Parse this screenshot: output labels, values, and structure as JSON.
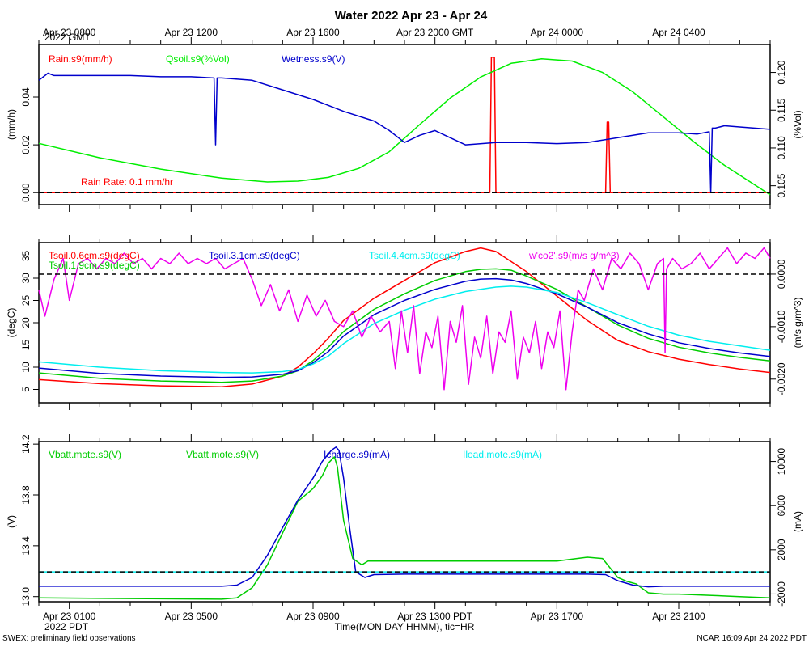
{
  "title": "Water 2022 Apr 23 - Apr 24",
  "top_time_labels": [
    "Apr 23 0800",
    "Apr 23 1200",
    "Apr 23 1600",
    "Apr 23 2000 GMT",
    "Apr 24 0000",
    "Apr 24 0400"
  ],
  "top_zone_label": "2022 GMT",
  "bottom_time_labels": [
    "Apr 23 0100",
    "Apr 23 0500",
    "Apr 23 0900",
    "Apr 23 1300 PDT",
    "Apr 23 1700",
    "Apr 23 2100"
  ],
  "bottom_zone_label": "2022 PDT",
  "xaxis_title": "Time(MON DAY HHMM), tic=HR",
  "footer_left": "SWEX: preliminary field observations",
  "footer_right": "NCAR 16:09 Apr 24 2022 PDT",
  "chart_data": [
    {
      "type": "line",
      "x_unit": "hours since Apr 23 0000 PDT",
      "xlim": [
        0,
        24
      ],
      "left_axis": {
        "label": "(mm/h)",
        "ylim": [
          -0.005,
          0.062
        ],
        "ticks": [
          "0.00",
          "0.02",
          "0.04"
        ],
        "tick_values": [
          0,
          0.02,
          0.04
        ]
      },
      "right_axis": {
        "label": "(%Vol)",
        "ylim": [
          0.1025,
          0.1237
        ],
        "ticks": [
          "0.105",
          "0.110",
          "0.115",
          "0.120"
        ],
        "tick_values": [
          0.105,
          0.11,
          0.115,
          0.12
        ]
      },
      "legend": [
        "Rain.s9(mm/h)",
        "Qsoil.s9(%Vol)",
        "Wetness.s9(V)"
      ],
      "annotation": "Rain Rate: 0.1 mm/hr",
      "reference_line": {
        "axis": "left",
        "value": 0
      },
      "series": [
        {
          "name": "Rain.s9(mm/h)",
          "axis": "left",
          "color": "#ff0000",
          "x": [
            0,
            14.8,
            14.85,
            14.95,
            15.0,
            18.6,
            18.65,
            18.7,
            18.75,
            24
          ],
          "y": [
            0,
            0,
            0.0567,
            0.0567,
            0,
            0,
            0.0295,
            0.0295,
            0,
            0
          ]
        },
        {
          "name": "Qsoil.s9(%Vol)",
          "axis": "right",
          "color": "#00ee00",
          "x": [
            0,
            2,
            4,
            6,
            7.5,
            8.5,
            9.5,
            10.5,
            11.5,
            12.5,
            13.5,
            14.5,
            15.5,
            16.5,
            17.5,
            18.5,
            19.5,
            20.5,
            21.5,
            22.5,
            24
          ],
          "y": [
            0.1106,
            0.1087,
            0.1072,
            0.106,
            0.1055,
            0.1056,
            0.1061,
            0.1073,
            0.1095,
            0.1131,
            0.1166,
            0.1194,
            0.1212,
            0.1218,
            0.1215,
            0.12,
            0.1174,
            0.1141,
            0.1108,
            0.1077,
            0.1038
          ]
        },
        {
          "name": "Wetness.s9(V)",
          "axis": "left",
          "color": "#0000cc",
          "x": [
            0,
            0.3,
            0.5,
            1.5,
            3,
            4,
            5,
            5.75,
            5.8,
            5.85,
            6,
            7,
            8,
            9,
            10,
            11,
            11.5,
            12,
            12.5,
            13,
            13.5,
            14,
            15,
            16,
            17,
            18,
            19,
            20,
            21,
            21.6,
            22.0,
            22.05,
            22.1,
            22.2,
            22.5,
            23,
            24
          ],
          "y": [
            0.047,
            0.05,
            0.049,
            0.049,
            0.049,
            0.0485,
            0.0485,
            0.048,
            0.02,
            0.048,
            0.048,
            0.047,
            0.043,
            0.039,
            0.034,
            0.03,
            0.026,
            0.021,
            0.024,
            0.026,
            0.023,
            0.02,
            0.021,
            0.021,
            0.0205,
            0.021,
            0.023,
            0.025,
            0.025,
            0.0245,
            0.0255,
            0.0,
            0.027,
            0.027,
            0.028,
            0.0275,
            0.0265
          ]
        }
      ]
    },
    {
      "type": "line",
      "x_unit": "hours since Apr 23 0000 PDT",
      "xlim": [
        0,
        24
      ],
      "left_axis": {
        "label": "(degC)",
        "ylim": [
          2,
          38
        ],
        "ticks": [
          "5",
          "10",
          "15",
          "20",
          "25",
          "30",
          "35"
        ],
        "tick_values": [
          5,
          10,
          15,
          20,
          25,
          30,
          35
        ]
      },
      "right_axis": {
        "label": "(m/s g/m^3)",
        "ylim": [
          -0.00245,
          0.0006
        ],
        "ticks": [
          "-0.0020",
          "-0.0010",
          "0.0000"
        ],
        "tick_values": [
          -0.002,
          -0.001,
          0
        ]
      },
      "legend": [
        "Tsoil.0.6cm.s9(degC)",
        "Tsoil.1.9cm.s9(degC)",
        "Tsoil.3.1cm.s9(degC)",
        "Tsoil.4.4cm.s9(degC)",
        "w'co2'.s9(m/s g/m^3)"
      ],
      "reference_line": {
        "axis": "right",
        "value": 0
      },
      "series": [
        {
          "name": "Tsoil.0.6cm.s9(degC)",
          "axis": "left",
          "color": "#ff0000",
          "x": [
            0,
            2,
            4,
            6,
            7,
            8,
            8.5,
            9,
            9.5,
            10,
            11,
            12,
            13,
            14,
            14.5,
            15,
            16,
            17,
            18,
            19,
            20,
            21,
            22,
            23,
            24
          ],
          "y": [
            7.2,
            6.3,
            5.8,
            5.6,
            6.2,
            8.0,
            10.0,
            13.0,
            16.5,
            20.5,
            25.5,
            29.5,
            33.5,
            36.0,
            36.8,
            36.0,
            31.5,
            26.0,
            20.5,
            16.0,
            13.5,
            11.8,
            10.6,
            9.6,
            8.8
          ]
        },
        {
          "name": "Tsoil.1.9cm.s9(degC)",
          "axis": "left",
          "color": "#00cc00",
          "x": [
            0,
            2,
            4,
            6,
            7,
            8,
            8.5,
            9,
            9.5,
            10,
            11,
            12,
            13,
            14,
            14.5,
            15,
            15.5,
            16,
            17,
            18,
            19,
            20,
            21,
            22,
            23,
            24
          ],
          "y": [
            8.7,
            7.5,
            6.9,
            6.6,
            6.9,
            8.0,
            9.2,
            11.5,
            14.5,
            18.0,
            23.0,
            26.5,
            29.5,
            31.5,
            32.0,
            32.1,
            31.8,
            30.5,
            27.5,
            23.5,
            19.5,
            16.5,
            14.5,
            13.2,
            12.2,
            11.4
          ]
        },
        {
          "name": "Tsoil.3.1cm.s9(degC)",
          "axis": "left",
          "color": "#0000cc",
          "x": [
            0,
            2,
            4,
            6,
            7,
            8,
            8.5,
            9,
            9.5,
            10,
            11,
            12,
            13,
            14,
            14.5,
            15,
            15.5,
            16,
            17,
            18,
            19,
            20,
            21,
            22,
            23,
            24
          ],
          "y": [
            9.8,
            8.6,
            8.0,
            7.7,
            7.8,
            8.4,
            9.2,
            11.0,
            13.5,
            17.0,
            21.8,
            25.0,
            27.5,
            29.3,
            29.8,
            29.9,
            29.6,
            28.8,
            26.5,
            23.5,
            20.0,
            17.5,
            15.5,
            14.2,
            13.2,
            12.4
          ]
        },
        {
          "name": "Tsoil.4.4cm.s9(degC)",
          "axis": "left",
          "color": "#00eeee",
          "x": [
            0,
            2,
            4,
            6,
            7,
            8,
            8.5,
            9,
            9.5,
            10,
            11,
            12,
            13,
            14,
            15,
            15.5,
            16,
            17,
            18,
            19,
            20,
            21,
            22,
            23,
            24
          ],
          "y": [
            11.2,
            10.0,
            9.2,
            8.8,
            8.7,
            9.0,
            9.5,
            10.7,
            12.5,
            15.3,
            19.8,
            22.8,
            25.3,
            27.0,
            28.0,
            28.2,
            28.0,
            26.8,
            24.5,
            21.8,
            19.2,
            17.2,
            15.8,
            14.8,
            13.8
          ]
        },
        {
          "name": "w'co2'.s9(m/s g/m^3)",
          "axis": "right",
          "color": "#ee00ee",
          "x": [
            0,
            0.2,
            0.5,
            0.8,
            1.0,
            1.3,
            1.6,
            1.9,
            2.2,
            2.5,
            2.8,
            3.1,
            3.4,
            3.7,
            4.0,
            4.3,
            4.6,
            4.9,
            5.2,
            5.5,
            5.8,
            6.1,
            6.4,
            6.7,
            7.0,
            7.3,
            7.6,
            7.9,
            8.2,
            8.5,
            8.8,
            9.1,
            9.4,
            9.7,
            10.0,
            10.3,
            10.6,
            10.9,
            11.2,
            11.5,
            11.7,
            11.9,
            12.1,
            12.3,
            12.5,
            12.7,
            12.9,
            13.1,
            13.3,
            13.5,
            13.7,
            13.9,
            14.1,
            14.3,
            14.5,
            14.7,
            14.9,
            15.1,
            15.3,
            15.5,
            15.7,
            15.9,
            16.1,
            16.3,
            16.5,
            16.7,
            16.9,
            17.1,
            17.3,
            17.5,
            17.7,
            17.9,
            18.2,
            18.5,
            18.8,
            19.1,
            19.4,
            19.7,
            20.0,
            20.3,
            20.5,
            20.55,
            20.6,
            20.8,
            21.1,
            21.4,
            21.7,
            22.0,
            22.3,
            22.6,
            22.9,
            23.2,
            23.5,
            23.8,
            24.0
          ],
          "y": [
            -0.0003,
            -0.0008,
            -0.0001,
            0.0003,
            -0.0005,
            0.0002,
            0.0003,
            0.0001,
            0.0003,
            0.0002,
            0.0004,
            0.0002,
            0.0003,
            0.0001,
            0.0003,
            0.0002,
            0.0004,
            0.0002,
            0.0003,
            0.0002,
            0.0003,
            0.0001,
            0.0002,
            0.0003,
            -0.0001,
            -0.0006,
            -0.0002,
            -0.0007,
            -0.0003,
            -0.0009,
            -0.0004,
            -0.0008,
            -0.0005,
            -0.0009,
            -0.001,
            -0.0007,
            -0.0012,
            -0.0008,
            -0.0011,
            -0.0009,
            -0.0018,
            -0.0007,
            -0.0015,
            -0.0006,
            -0.0019,
            -0.0011,
            -0.0014,
            -0.0008,
            -0.0022,
            -0.0009,
            -0.0013,
            -0.0006,
            -0.0021,
            -0.0012,
            -0.0016,
            -0.0008,
            -0.0019,
            -0.0011,
            -0.0013,
            -0.0007,
            -0.002,
            -0.0012,
            -0.0015,
            -0.0009,
            -0.0018,
            -0.0011,
            -0.0014,
            -0.0007,
            -0.0022,
            -0.0011,
            -0.0003,
            -0.0005,
            0.0001,
            -0.0003,
            0.0003,
            0.0001,
            0.0004,
            0.0002,
            -0.0003,
            0.0002,
            0.0003,
            -0.0015,
            0.0001,
            0.0003,
            0.0001,
            0.0002,
            0.0004,
            0.0001,
            0.0003,
            0.0005,
            0.0002,
            0.0004,
            0.0003,
            0.0005,
            0.0003
          ]
        }
      ]
    },
    {
      "type": "line",
      "x_unit": "hours since Apr 23 0000 PDT",
      "xlim": [
        0,
        24
      ],
      "left_axis": {
        "label": "(V)",
        "ylim": [
          12.96,
          14.22
        ],
        "ticks": [
          "13.0",
          "13.4",
          "13.8",
          "14.2"
        ],
        "tick_values": [
          13.0,
          13.4,
          13.8,
          14.2
        ]
      },
      "right_axis": {
        "label": "(mA)",
        "ylim": [
          -2700,
          11800
        ],
        "ticks": [
          "-2000",
          "2000",
          "6000",
          "10000"
        ],
        "tick_values": [
          -2000,
          2000,
          6000,
          10000
        ]
      },
      "legend": [
        "Vbatt.mote.s9(V)",
        "Vbatt.mote.s9(V)",
        "Icharge.s9(mA)",
        "Iload.mote.s9(mA)"
      ],
      "reference_line": {
        "axis": "right",
        "value": 0
      },
      "series": [
        {
          "name": "Vbatt.mote.s9(V)",
          "axis": "left",
          "color": "#00cc00",
          "x": [
            0,
            6.0,
            6.5,
            7.0,
            7.5,
            8.0,
            8.5,
            9.0,
            9.3,
            9.5,
            9.7,
            9.8,
            10.0,
            10.3,
            10.6,
            10.8,
            11.0,
            12,
            13,
            14,
            15,
            16,
            17,
            18,
            18.5,
            19.0,
            19.3,
            19.6,
            20.0,
            20.5,
            21,
            22,
            23,
            24
          ],
          "y": [
            12.99,
            12.98,
            12.99,
            13.07,
            13.25,
            13.5,
            13.75,
            13.85,
            13.95,
            14.05,
            14.1,
            14.02,
            13.6,
            13.3,
            13.25,
            13.28,
            13.28,
            13.28,
            13.28,
            13.28,
            13.28,
            13.28,
            13.28,
            13.31,
            13.3,
            13.15,
            13.12,
            13.1,
            13.03,
            13.02,
            13.02,
            13.01,
            13.0,
            12.99
          ]
        },
        {
          "name": "Icharge.s9(mA)",
          "axis": "right",
          "color": "#0000cc",
          "x": [
            0,
            5.5,
            6.0,
            6.5,
            7.0,
            7.5,
            8.0,
            8.5,
            9.0,
            9.3,
            9.6,
            9.75,
            9.85,
            10.0,
            10.2,
            10.4,
            10.7,
            11.0,
            12,
            13,
            14,
            15,
            16,
            17,
            18,
            18.6,
            19.0,
            19.5,
            20.0,
            20.5,
            21,
            22,
            23,
            24
          ],
          "y": [
            -1300,
            -1300,
            -1300,
            -1200,
            -500,
            1500,
            4000,
            6500,
            8500,
            10000,
            11000,
            11300,
            11000,
            8500,
            4000,
            0,
            -500,
            -250,
            -200,
            -200,
            -200,
            -200,
            -200,
            -200,
            -200,
            -250,
            -800,
            -1200,
            -1350,
            -1300,
            -1300,
            -1300,
            -1300,
            -1300
          ]
        },
        {
          "name": "Iload.mote.s9(mA)",
          "axis": "right",
          "color": "#00eeee",
          "x": [
            0,
            24
          ],
          "y": [
            0,
            0
          ]
        }
      ]
    }
  ]
}
